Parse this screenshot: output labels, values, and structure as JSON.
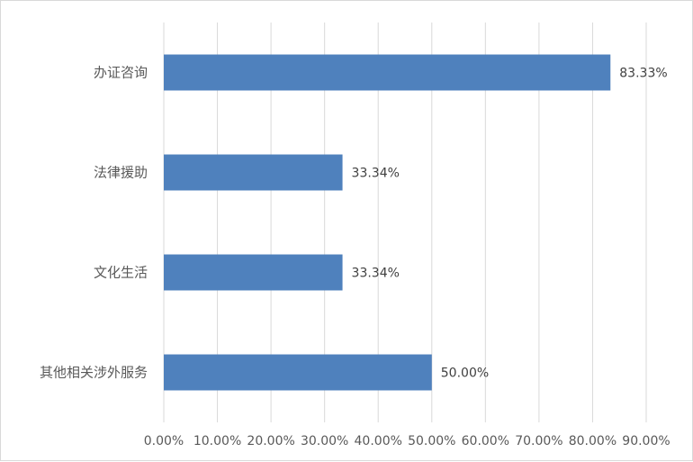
{
  "chart_data": {
    "type": "bar",
    "orientation": "horizontal",
    "categories": [
      "办证咨询",
      "法律援助",
      "文化生活",
      "其他相关涉外服务"
    ],
    "values": [
      83.33,
      33.34,
      33.34,
      50.0
    ],
    "data_labels": [
      "83.33%",
      "33.34%",
      "33.34%",
      "50.00%"
    ],
    "x_ticks": [
      "0.00%",
      "10.00%",
      "20.00%",
      "30.00%",
      "40.00%",
      "50.00%",
      "60.00%",
      "70.00%",
      "80.00%",
      "90.00%"
    ],
    "xlim": [
      0,
      90
    ],
    "grid": true,
    "bar_color": "#4f81bd",
    "grid_color": "#d9d9d9",
    "title": "",
    "xlabel": "",
    "ylabel": ""
  }
}
